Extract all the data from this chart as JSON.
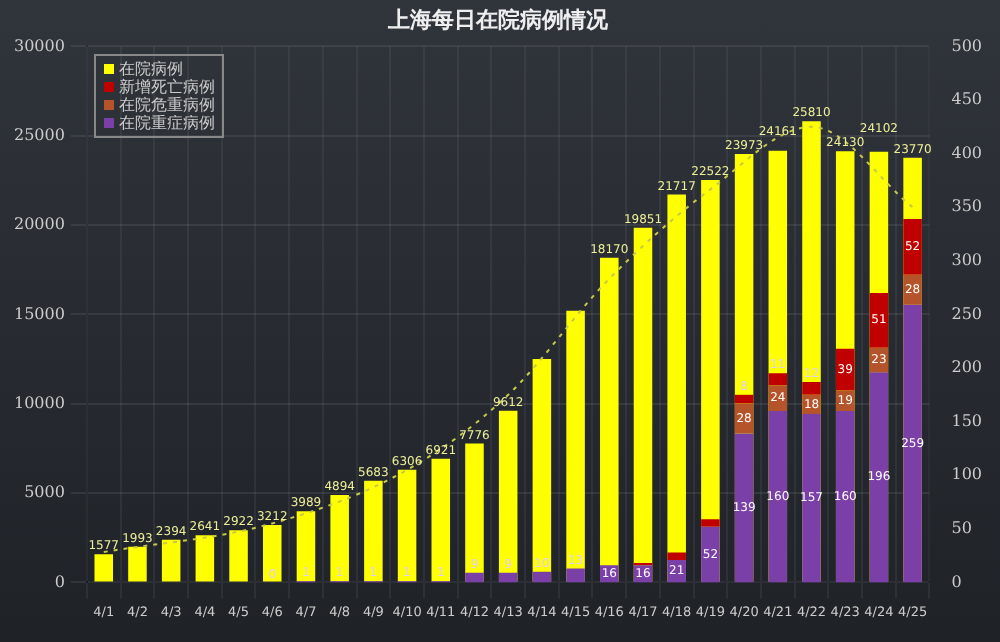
{
  "chart_data": {
    "type": "bar",
    "title": "上海每日在院病例情况",
    "categories": [
      "4/1",
      "4/2",
      "4/3",
      "4/4",
      "4/5",
      "4/6",
      "4/7",
      "4/8",
      "4/9",
      "4/10",
      "4/11",
      "4/12",
      "4/13",
      "4/14",
      "4/15",
      "4/16",
      "4/17",
      "4/18",
      "4/19",
      "4/20",
      "4/21",
      "4/22",
      "4/23",
      "4/24",
      "4/25"
    ],
    "series": [
      {
        "name": "在院病例",
        "color": "#ffff00",
        "values": [
          1577,
          1993,
          2394,
          2641,
          2922,
          3212,
          3989,
          4894,
          5683,
          6306,
          6921,
          7776,
          9612,
          12500,
          15200,
          18170,
          19851,
          21717,
          22522,
          23973,
          24161,
          25810,
          24130,
          24102,
          23770
        ],
        "value_labels": [
          "1577",
          "1993",
          "2394",
          "2641",
          "2922",
          "3212",
          "3989",
          "4894",
          "5683",
          "6306",
          "6921",
          "7776",
          "9612",
          null,
          null,
          "18170",
          "19851",
          "21717",
          "22522",
          "23973",
          "24161",
          "25810",
          "24130",
          "24102",
          "23770"
        ]
      },
      {
        "name": "在院重症病例",
        "color": "#7b3fa8",
        "axis": "y2",
        "values": [
          null,
          null,
          null,
          null,
          null,
          0,
          1,
          1,
          1,
          1,
          1,
          9,
          9,
          10,
          13,
          16,
          16,
          21,
          52,
          139,
          160,
          157,
          160,
          196,
          259
        ],
        "value_labels": [
          null,
          null,
          null,
          null,
          null,
          "0",
          "1",
          "1",
          "1",
          "1",
          "1",
          "9",
          "9",
          "10",
          "13",
          "16",
          "16",
          "21",
          "52",
          "139",
          "160",
          "157",
          "160",
          "196",
          "259"
        ]
      },
      {
        "name": "在院危重病例",
        "color": "#b5542a",
        "axis": "y2",
        "values": [
          null,
          null,
          null,
          null,
          null,
          null,
          null,
          null,
          null,
          null,
          null,
          null,
          null,
          null,
          null,
          null,
          null,
          null,
          null,
          28,
          24,
          18,
          19,
          23,
          28
        ],
        "value_labels": [
          null,
          null,
          null,
          null,
          null,
          null,
          null,
          null,
          null,
          null,
          null,
          null,
          null,
          null,
          null,
          null,
          null,
          null,
          null,
          "28",
          "24",
          "18",
          "19",
          "23",
          "28"
        ]
      },
      {
        "name": "新增死亡病例",
        "color": "#c00000",
        "axis": "y2",
        "values": [
          null,
          null,
          null,
          null,
          null,
          null,
          null,
          null,
          null,
          null,
          null,
          null,
          null,
          null,
          null,
          null,
          2,
          7,
          7,
          8,
          11,
          12,
          39,
          51,
          52
        ],
        "value_labels": [
          null,
          null,
          null,
          null,
          null,
          null,
          null,
          null,
          null,
          null,
          null,
          null,
          null,
          null,
          null,
          null,
          null,
          null,
          null,
          "8",
          "11",
          "12",
          "39",
          "51",
          "52"
        ]
      },
      {
        "type": "line",
        "color": "#c8c84a",
        "line_style": "dotted",
        "marker": "none",
        "values": [
          1700,
          null,
          null,
          null,
          null,
          3300,
          null,
          null,
          null,
          6300,
          null,
          null,
          10500,
          null,
          null,
          17000,
          null,
          null,
          22000,
          null,
          null,
          25500,
          null,
          null,
          21000
        ]
      }
    ],
    "stacked": true,
    "ylim": [
      0,
      30000
    ],
    "yticks": [
      0,
      5000,
      10000,
      15000,
      20000,
      25000,
      30000
    ],
    "y2lim": [
      0,
      500
    ],
    "y2ticks": [
      0,
      50,
      100,
      150,
      200,
      250,
      300,
      350,
      400,
      450,
      500
    ],
    "grid": true,
    "legend": "top left"
  }
}
